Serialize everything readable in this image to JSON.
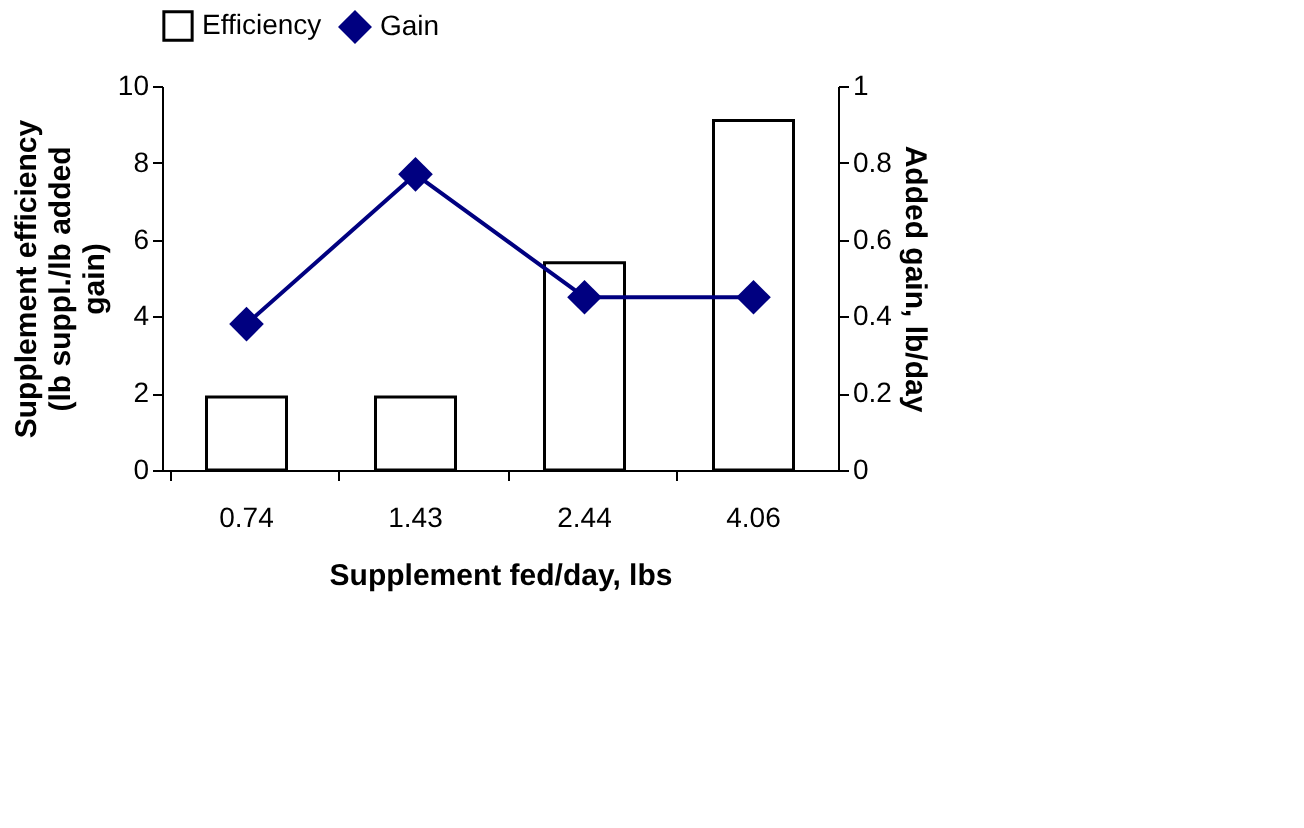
{
  "chart_data": {
    "type": "bar",
    "xlabel": "Supplement fed/day, lbs",
    "ylabel": "Supplement efficiency (lb suppl./lb added gain)",
    "y2label": "Added gain, lb/day",
    "categories": [
      "0.74",
      "1.43",
      "2.44",
      "4.06"
    ],
    "series": [
      {
        "name": "Efficiency",
        "color": "#ffffff",
        "values": [
          1.9,
          1.9,
          5.4,
          9.1
        ]
      },
      {
        "name": "Gain",
        "type": "line",
        "axis": "y2",
        "marker": "diamond",
        "color": "#000080",
        "values": [
          0.38,
          0.77,
          0.45,
          0.45
        ]
      }
    ],
    "ylim": [
      0,
      10
    ],
    "yticks": [
      0,
      2,
      4,
      6,
      8,
      10
    ],
    "y2lim": [
      0,
      1
    ],
    "y2ticks": [
      0,
      0.2,
      0.4,
      0.6,
      0.8,
      1
    ],
    "grid": false,
    "legend": "top"
  }
}
